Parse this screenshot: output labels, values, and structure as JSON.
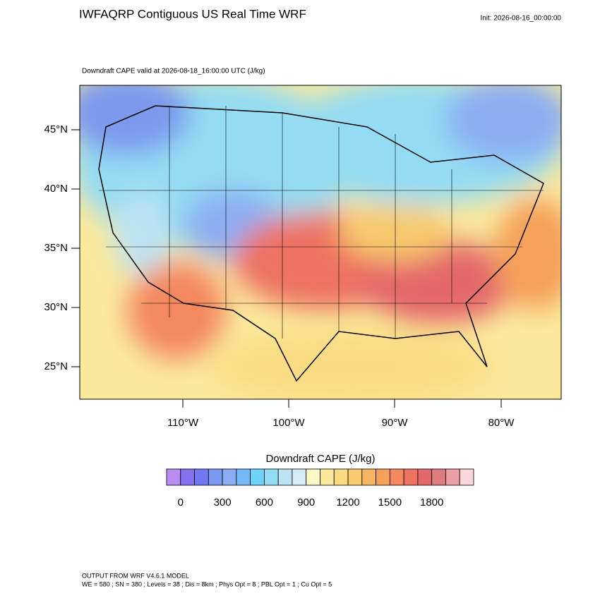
{
  "header": {
    "title": "IWFAQRP Contiguous US Real Time WRF",
    "init": "Init: 2026-08-16_00:00:00"
  },
  "map": {
    "subtitle": "Downdraft CAPE valid at 2026-08-18_16:00:00 UTC   (J/kg)",
    "lat_labels": [
      "45°N",
      "40°N",
      "35°N",
      "30°N",
      "25°N"
    ],
    "lon_labels": [
      "110°W",
      "100°W",
      "90°W",
      "80°W"
    ]
  },
  "colorbar": {
    "title": "Downdraft CAPE  (J/kg)",
    "range": [
      -100,
      2100
    ],
    "ticks": [
      0,
      300,
      600,
      900,
      1200,
      1500,
      1800
    ],
    "colors": [
      "#b98cf3",
      "#8570ef",
      "#7278f3",
      "#7b99ee",
      "#8aadf3",
      "#73b9f7",
      "#6fd3f8",
      "#94dcf3",
      "#bbe3f3",
      "#d6edf6",
      "#fdf8c4",
      "#fbe99b",
      "#f9dc82",
      "#f8c96d",
      "#f6b55f",
      "#f5a15a",
      "#f4885f",
      "#ee7262",
      "#e4676b",
      "#df7c81",
      "#ec9fa7",
      "#fbd6dc"
    ]
  },
  "footer": {
    "line1": "OUTPUT FROM WRF V4.6.1 MODEL",
    "line2": "WE = 580 ; SN = 380 ; Levels = 38 ; Dis = 8km ; Phys Opt = 8 ; PBL Opt = 1 ; Cu Opt = 5"
  }
}
